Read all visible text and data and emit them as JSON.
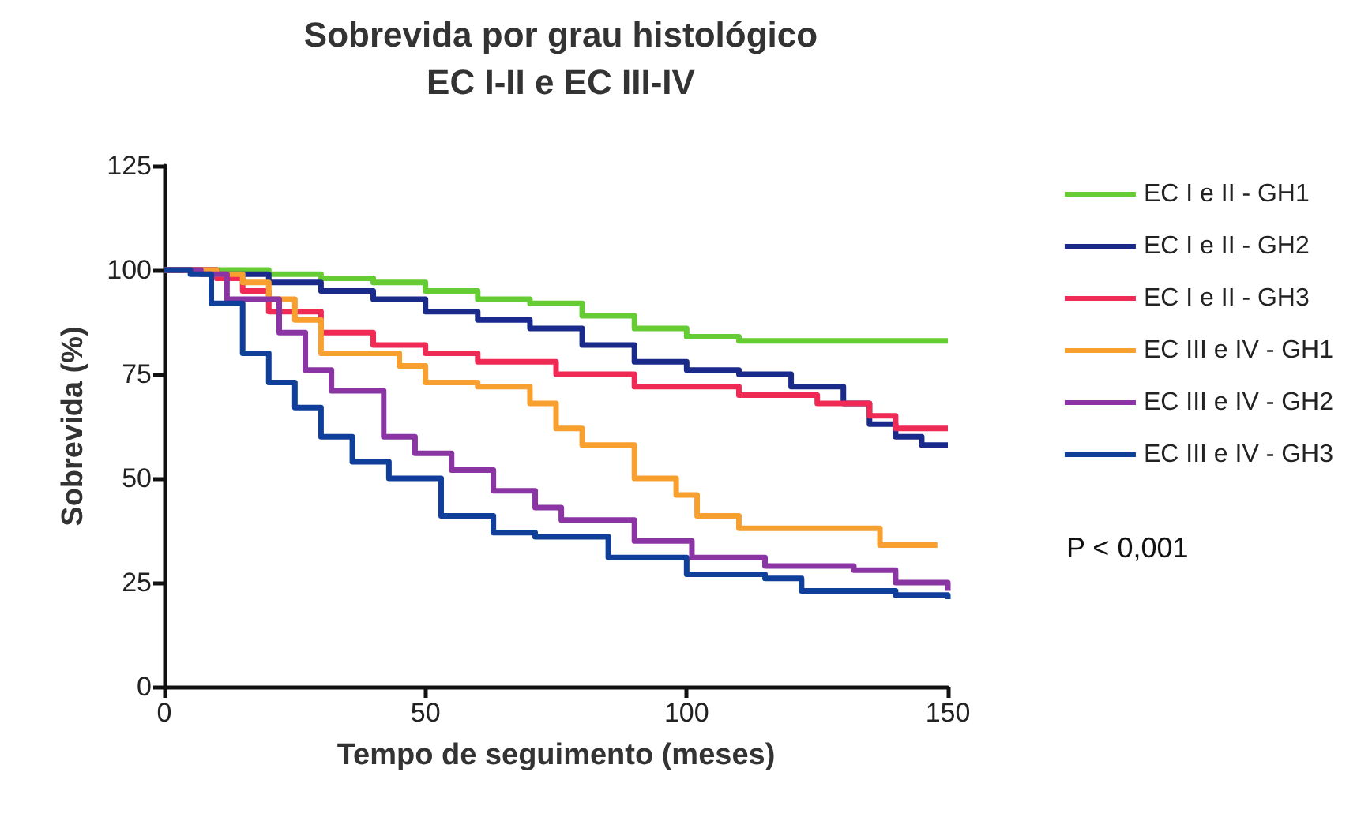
{
  "chart_data": {
    "type": "step",
    "title": "Sobrevida por grau histológico\nEC I-II e EC III-IV",
    "xlabel": "Tempo de seguimento (meses)",
    "ylabel": "Sobrevida (%)",
    "xlim": [
      0,
      150
    ],
    "xticks": [
      0,
      50,
      100,
      150
    ],
    "ylim": [
      0,
      125
    ],
    "yticks": [
      0,
      25,
      50,
      75,
      100,
      125
    ],
    "grid": false,
    "legend": "right",
    "marker": "none",
    "line_style": "solid",
    "annotations": [
      "P < 0,001"
    ],
    "series": [
      {
        "name": "EC I e II - GH1",
        "color": "#66cc33",
        "x": [
          0,
          20,
          30,
          40,
          50,
          60,
          70,
          80,
          90,
          100,
          110,
          150
        ],
        "values": [
          100,
          99,
          98,
          97,
          95,
          93,
          92,
          89,
          86,
          84,
          83,
          83
        ]
      },
      {
        "name": "EC I e II - GH2",
        "color": "#1a2a8a",
        "x": [
          0,
          10,
          20,
          30,
          40,
          50,
          60,
          70,
          80,
          90,
          100,
          110,
          120,
          130,
          135,
          140,
          145,
          150
        ],
        "values": [
          100,
          99,
          97,
          95,
          93,
          90,
          88,
          86,
          82,
          78,
          76,
          75,
          72,
          68,
          63,
          60,
          58,
          58
        ]
      },
      {
        "name": "EC I e II - GH3",
        "color": "#ee2a55",
        "x": [
          0,
          10,
          15,
          20,
          30,
          40,
          50,
          60,
          75,
          90,
          110,
          125,
          135,
          140,
          150
        ],
        "values": [
          100,
          98,
          95,
          90,
          85,
          82,
          80,
          78,
          75,
          72,
          70,
          68,
          65,
          62,
          62
        ]
      },
      {
        "name": "EC III e IV - GH1",
        "color": "#f7a030",
        "x": [
          0,
          10,
          15,
          20,
          25,
          30,
          45,
          50,
          60,
          70,
          75,
          80,
          90,
          98,
          102,
          110,
          137,
          148
        ],
        "values": [
          100,
          99,
          97,
          93,
          88,
          80,
          77,
          73,
          72,
          68,
          62,
          58,
          50,
          46,
          41,
          38,
          34,
          34
        ]
      },
      {
        "name": "EC III e IV - GH2",
        "color": "#8b35a5",
        "x": [
          0,
          7,
          12,
          22,
          27,
          32,
          42,
          48,
          55,
          63,
          71,
          76,
          90,
          101,
          115,
          132,
          140,
          150
        ],
        "values": [
          100,
          99,
          93,
          85,
          76,
          71,
          60,
          56,
          52,
          47,
          43,
          40,
          35,
          31,
          29,
          28,
          25,
          23
        ]
      },
      {
        "name": "EC III e IV - GH3",
        "color": "#0f3f9a",
        "x": [
          0,
          5,
          9,
          15,
          20,
          25,
          30,
          36,
          43,
          53,
          63,
          71,
          85,
          100,
          115,
          122,
          140,
          150
        ],
        "values": [
          100,
          99,
          92,
          80,
          73,
          67,
          60,
          54,
          50,
          41,
          37,
          36,
          31,
          27,
          26,
          23,
          22,
          21
        ]
      }
    ]
  }
}
